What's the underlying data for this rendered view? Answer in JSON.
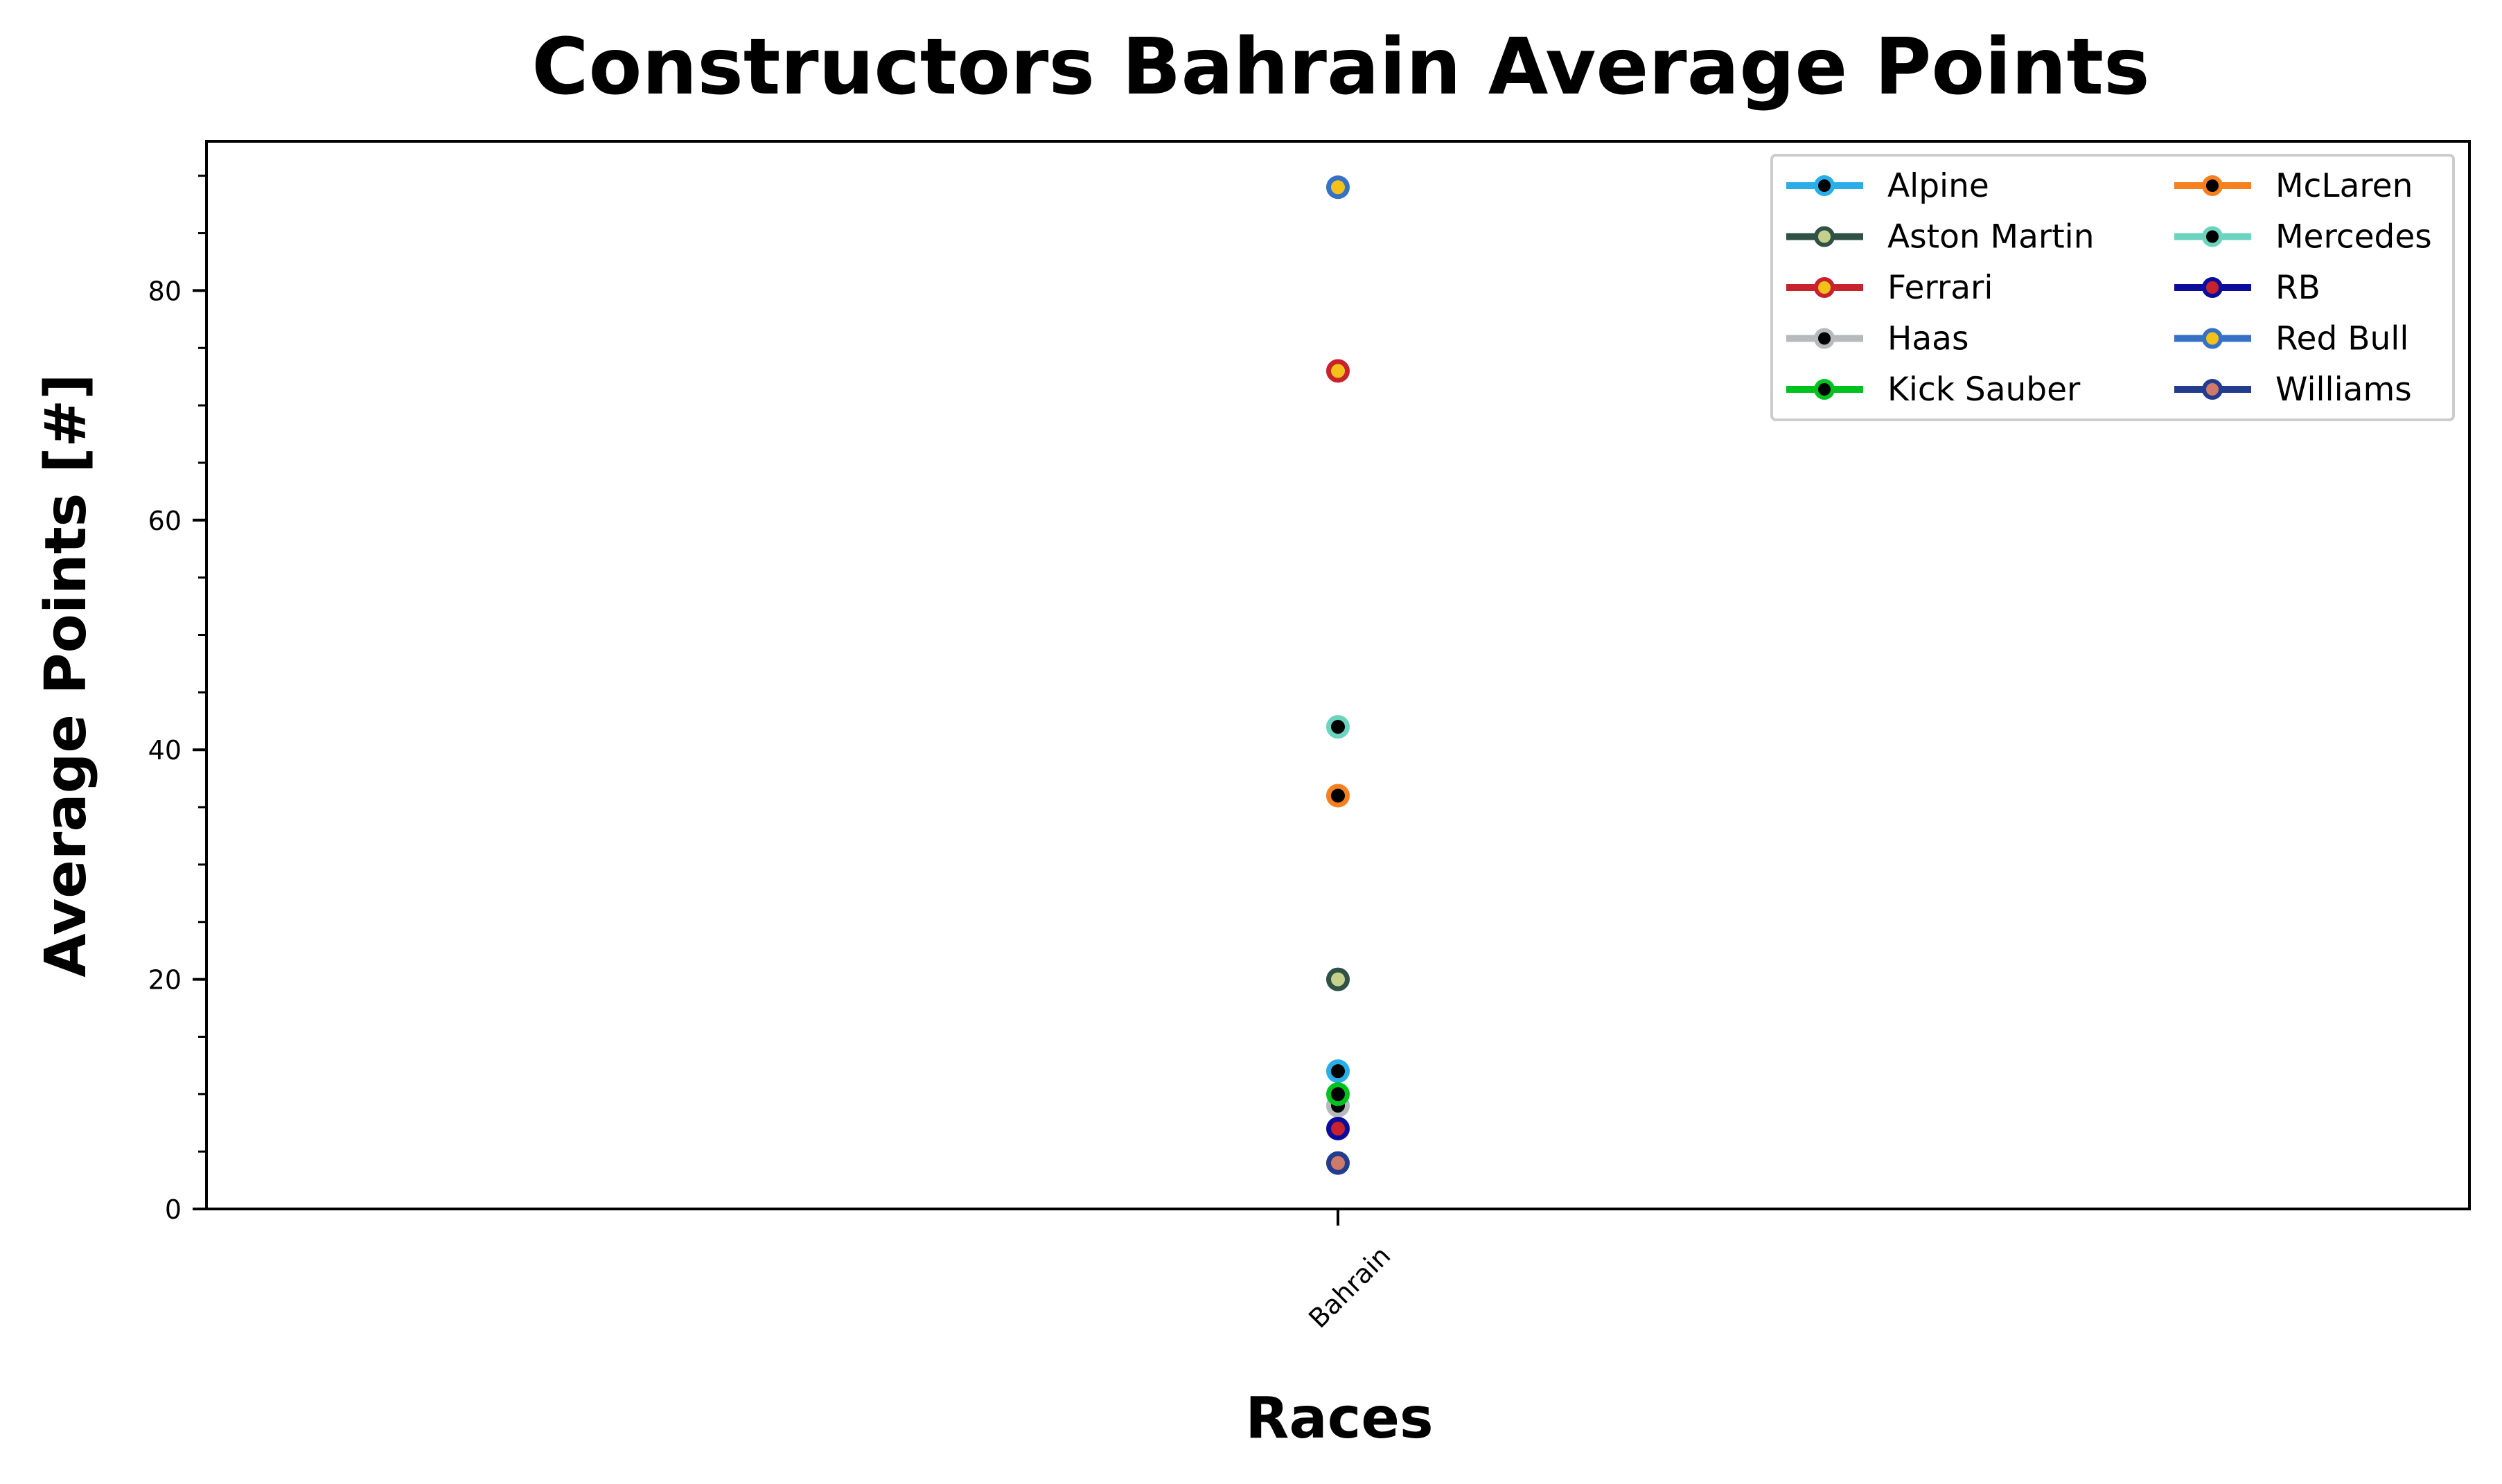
{
  "chart_data": {
    "type": "scatter",
    "title": "Constructors Bahrain Average Points",
    "xlabel": "Races",
    "ylabel": "Average Points [#]",
    "categories": [
      "Bahrain"
    ],
    "ylim": [
      0,
      93
    ],
    "y_major_ticks": [
      0,
      20,
      40,
      60,
      80
    ],
    "y_minor_ticks": [
      5,
      10,
      15,
      25,
      30,
      35,
      45,
      50,
      55,
      65,
      70,
      75,
      85,
      90
    ],
    "grid": false,
    "legend_position": "top-right",
    "legend_columns": 2,
    "series": [
      {
        "name": "Alpine",
        "values": [
          12
        ],
        "line_color": "#29aee8",
        "marker_face": "#000000"
      },
      {
        "name": "Aston Martin",
        "values": [
          20
        ],
        "line_color": "#2f5146",
        "marker_face": "#c5d08a"
      },
      {
        "name": "Ferrari",
        "values": [
          73
        ],
        "line_color": "#c8232c",
        "marker_face": "#f2c21b"
      },
      {
        "name": "Haas",
        "values": [
          9
        ],
        "line_color": "#b6babd",
        "marker_face": "#000000"
      },
      {
        "name": "Kick Sauber",
        "values": [
          10
        ],
        "line_color": "#00c21f",
        "marker_face": "#000000"
      },
      {
        "name": "McLaren",
        "values": [
          36
        ],
        "line_color": "#f58020",
        "marker_face": "#000000"
      },
      {
        "name": "Mercedes",
        "values": [
          42
        ],
        "line_color": "#6cd3bf",
        "marker_face": "#000000"
      },
      {
        "name": "RB",
        "values": [
          7
        ],
        "line_color": "#0c0c9c",
        "marker_face": "#c8232c"
      },
      {
        "name": "Red Bull",
        "values": [
          89
        ],
        "line_color": "#3671c6",
        "marker_face": "#f2c21b"
      },
      {
        "name": "Williams",
        "values": [
          4
        ],
        "line_color": "#233c8e",
        "marker_face": "#d07b6a"
      }
    ]
  }
}
